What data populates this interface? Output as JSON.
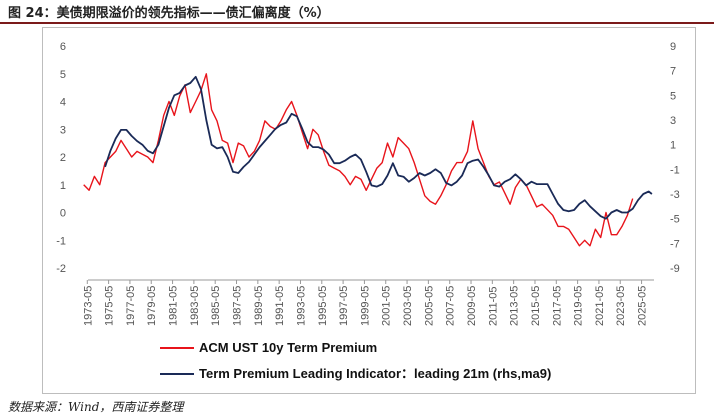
{
  "figure": {
    "title": "图 24：美债期限溢价的领先指标——债汇偏离度（%）",
    "source": "数据来源：Wind，西南证券整理"
  },
  "chart_data": {
    "type": "line",
    "left_axis": {
      "ticks": [
        "6",
        "5",
        "4",
        "3",
        "2",
        "1",
        "0",
        "-1",
        "-2"
      ],
      "ylim": [
        -2,
        6
      ]
    },
    "right_axis": {
      "ticks": [
        "9",
        "7",
        "5",
        "3",
        "1",
        "-1",
        "-3",
        "-5",
        "-7",
        "-9"
      ],
      "ylim": [
        -9,
        9
      ]
    },
    "x_tick_labels": [
      "1973-05",
      "1975-05",
      "1977-05",
      "1979-05",
      "1981-05",
      "1983-05",
      "1985-05",
      "1987-05",
      "1989-05",
      "1991-05",
      "1993-05",
      "1995-05",
      "1997-05",
      "1999-05",
      "2001-05",
      "2003-05",
      "2005-05",
      "2007-05",
      "2009-05",
      "2011-05",
      "2013-05",
      "2015-05",
      "2017-05",
      "2019-05",
      "2021-05",
      "2023-05",
      "2025-05"
    ],
    "x_range": [
      1973.4,
      2026.5
    ],
    "series": [
      {
        "name": "ACM UST 10y Term Premium",
        "axis": "left",
        "color": "#e8141b",
        "x": [
          1973.0,
          1973.5,
          1974.0,
          1974.5,
          1975.0,
          1975.5,
          1976.0,
          1976.5,
          1977.0,
          1977.5,
          1978.0,
          1978.5,
          1979.0,
          1979.5,
          1980.0,
          1980.5,
          1981.0,
          1981.5,
          1982.0,
          1982.5,
          1983.0,
          1983.5,
          1984.0,
          1984.5,
          1985.0,
          1985.5,
          1986.0,
          1986.5,
          1987.0,
          1987.5,
          1988.0,
          1988.5,
          1989.0,
          1989.5,
          1990.0,
          1990.5,
          1991.0,
          1991.5,
          1992.0,
          1992.5,
          1993.0,
          1993.5,
          1994.0,
          1994.5,
          1995.0,
          1995.5,
          1996.0,
          1996.5,
          1997.0,
          1997.5,
          1998.0,
          1998.5,
          1999.0,
          1999.5,
          2000.0,
          2000.5,
          2001.0,
          2001.5,
          2002.0,
          2002.5,
          2003.0,
          2003.5,
          2004.0,
          2004.5,
          2005.0,
          2005.5,
          2006.0,
          2006.5,
          2007.0,
          2007.5,
          2008.0,
          2008.5,
          2009.0,
          2009.5,
          2010.0,
          2010.5,
          2011.0,
          2011.5,
          2012.0,
          2012.5,
          2013.0,
          2013.5,
          2014.0,
          2014.5,
          2015.0,
          2015.5,
          2016.0,
          2016.5,
          2017.0,
          2017.5,
          2018.0,
          2018.5,
          2019.0,
          2019.5,
          2020.0,
          2020.5,
          2021.0,
          2021.5,
          2022.0,
          2022.5,
          2023.0,
          2023.5,
          2024.0,
          2024.5
        ],
        "values": [
          1.0,
          0.8,
          1.3,
          1.0,
          1.8,
          2.0,
          2.2,
          2.6,
          2.3,
          2.0,
          2.2,
          2.1,
          2.0,
          1.8,
          2.6,
          3.5,
          4.0,
          3.5,
          4.2,
          4.6,
          3.6,
          4.0,
          4.4,
          5.0,
          3.7,
          3.3,
          2.6,
          2.5,
          1.8,
          2.5,
          2.4,
          2.0,
          2.2,
          2.6,
          3.3,
          3.1,
          3.0,
          3.3,
          3.7,
          4.0,
          3.5,
          2.9,
          2.3,
          3.0,
          2.8,
          2.2,
          1.7,
          1.6,
          1.5,
          1.3,
          1.0,
          1.3,
          1.2,
          0.8,
          1.2,
          1.6,
          1.8,
          2.5,
          2.0,
          2.7,
          2.5,
          2.3,
          1.8,
          1.2,
          0.6,
          0.4,
          0.3,
          0.6,
          1.0,
          1.5,
          1.8,
          1.8,
          2.2,
          3.3,
          2.3,
          1.8,
          1.3,
          1.0,
          1.1,
          0.7,
          0.3,
          0.9,
          1.2,
          1.0,
          0.6,
          0.2,
          0.3,
          0.1,
          -0.1,
          -0.5,
          -0.5,
          -0.6,
          -0.9,
          -1.2,
          -1.0,
          -1.2,
          -0.6,
          -0.9,
          0.0,
          -0.8,
          -0.8,
          -0.5,
          -0.1,
          0.5
        ]
      },
      {
        "name": "Term Premium Leading Indicator：leading 21m (rhs,ma9)",
        "axis": "right",
        "color": "#1a2a57",
        "x": [
          1975.0,
          1975.5,
          1976.0,
          1976.5,
          1977.0,
          1977.5,
          1978.0,
          1978.5,
          1979.0,
          1979.5,
          1980.0,
          1980.5,
          1981.0,
          1981.5,
          1982.0,
          1982.5,
          1983.0,
          1983.5,
          1984.0,
          1984.5,
          1985.0,
          1985.5,
          1986.0,
          1986.5,
          1987.0,
          1987.5,
          1988.0,
          1988.5,
          1989.0,
          1989.5,
          1990.0,
          1990.5,
          1991.0,
          1991.5,
          1992.0,
          1992.5,
          1993.0,
          1993.5,
          1994.0,
          1994.5,
          1995.0,
          1995.5,
          1996.0,
          1996.5,
          1997.0,
          1997.5,
          1998.0,
          1998.5,
          1999.0,
          1999.5,
          2000.0,
          2000.5,
          2001.0,
          2001.5,
          2002.0,
          2002.5,
          2003.0,
          2003.5,
          2004.0,
          2004.5,
          2005.0,
          2005.5,
          2006.0,
          2006.5,
          2007.0,
          2007.5,
          2008.0,
          2008.5,
          2009.0,
          2009.5,
          2010.0,
          2010.5,
          2011.0,
          2011.5,
          2012.0,
          2012.5,
          2013.0,
          2013.5,
          2014.0,
          2014.5,
          2015.0,
          2015.5,
          2016.0,
          2016.5,
          2017.0,
          2017.5,
          2018.0,
          2018.5,
          2019.0,
          2019.5,
          2020.0,
          2020.5,
          2021.0,
          2021.5,
          2022.0,
          2022.5,
          2023.0,
          2023.5,
          2024.0,
          2024.5,
          2025.0,
          2025.5,
          2026.0,
          2026.3
        ],
        "values": [
          -0.8,
          0.5,
          1.5,
          2.2,
          2.2,
          1.7,
          1.3,
          1.0,
          0.5,
          0.3,
          1.0,
          2.5,
          4.0,
          5.0,
          5.2,
          5.8,
          6.0,
          6.5,
          5.5,
          3.0,
          1.0,
          0.7,
          0.8,
          0.0,
          -1.2,
          -1.3,
          -0.8,
          -0.4,
          0.2,
          0.8,
          1.3,
          1.8,
          2.3,
          2.6,
          2.8,
          3.5,
          3.3,
          2.3,
          1.2,
          0.8,
          0.8,
          0.6,
          0.2,
          -0.5,
          -0.5,
          -0.3,
          0.0,
          0.2,
          -0.2,
          -1.2,
          -2.3,
          -2.4,
          -2.2,
          -1.5,
          -0.5,
          -1.5,
          -1.6,
          -2.0,
          -1.7,
          -1.3,
          -1.5,
          -1.3,
          -1.0,
          -1.3,
          -2.1,
          -2.3,
          -2.0,
          -1.5,
          -0.5,
          -0.3,
          -0.2,
          -0.8,
          -1.5,
          -2.3,
          -2.4,
          -2.0,
          -1.8,
          -1.4,
          -1.8,
          -2.3,
          -2.0,
          -2.2,
          -2.2,
          -2.2,
          -3.0,
          -3.8,
          -4.3,
          -4.4,
          -4.3,
          -3.8,
          -3.5,
          -4.0,
          -4.4,
          -4.8,
          -5.0,
          -4.5,
          -4.3,
          -4.5,
          -4.5,
          -4.2,
          -3.5,
          -3.0,
          -2.8,
          -3.0
        ]
      }
    ]
  }
}
